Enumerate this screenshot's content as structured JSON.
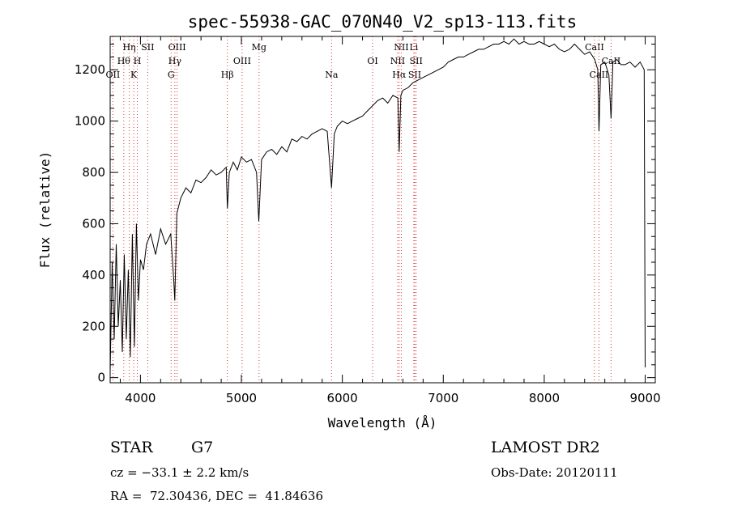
{
  "chart_data": {
    "type": "line",
    "title": "spec-55938-GAC_070N40_V2_sp13-113.fits",
    "xlabel": "Wavelength (Å)",
    "ylabel": "Flux (relative)",
    "xlim": [
      3700,
      9100
    ],
    "ylim": [
      -20,
      1330
    ],
    "xticks": [
      4000,
      5000,
      6000,
      7000,
      8000,
      9000
    ],
    "yticks": [
      0,
      200,
      400,
      600,
      800,
      1000,
      1200
    ],
    "grid": false,
    "series": [
      {
        "x": [
          3700,
          3720,
          3740,
          3760,
          3780,
          3800,
          3820,
          3840,
          3860,
          3880,
          3900,
          3920,
          3940,
          3960,
          3980,
          4000,
          4030,
          4060,
          4100,
          4150,
          4200,
          4250,
          4300,
          4330,
          4340,
          4360,
          4400,
          4450,
          4500,
          4550,
          4600,
          4650,
          4700,
          4750,
          4800,
          4850,
          4861,
          4880,
          4920,
          4960,
          5000,
          5050,
          5100,
          5150,
          5172,
          5200,
          5250,
          5300,
          5350,
          5400,
          5450,
          5500,
          5550,
          5600,
          5650,
          5700,
          5750,
          5800,
          5850,
          5893,
          5920,
          5950,
          6000,
          6050,
          6100,
          6150,
          6200,
          6250,
          6300,
          6350,
          6400,
          6450,
          6500,
          6550,
          6563,
          6580,
          6600,
          6650,
          6700,
          6750,
          6800,
          6850,
          6900,
          6950,
          7000,
          7050,
          7100,
          7150,
          7200,
          7250,
          7300,
          7350,
          7400,
          7450,
          7500,
          7550,
          7600,
          7650,
          7700,
          7750,
          7800,
          7850,
          7900,
          7950,
          8000,
          8050,
          8100,
          8150,
          8200,
          8250,
          8300,
          8350,
          8400,
          8450,
          8500,
          8530,
          8542,
          8560,
          8600,
          8640,
          8662,
          8680,
          8720,
          8760,
          8800,
          8850,
          8900,
          8950,
          8990,
          9000
        ],
        "y": [
          20,
          450,
          150,
          520,
          200,
          380,
          100,
          480,
          150,
          420,
          80,
          560,
          120,
          600,
          300,
          460,
          420,
          520,
          560,
          480,
          580,
          520,
          560,
          380,
          300,
          640,
          700,
          740,
          720,
          770,
          760,
          780,
          810,
          790,
          800,
          820,
          660,
          800,
          840,
          810,
          860,
          840,
          850,
          800,
          610,
          850,
          880,
          890,
          870,
          900,
          880,
          930,
          920,
          940,
          930,
          950,
          960,
          970,
          960,
          740,
          950,
          980,
          1000,
          990,
          1000,
          1010,
          1020,
          1040,
          1060,
          1080,
          1090,
          1070,
          1100,
          1090,
          880,
          1100,
          1120,
          1130,
          1150,
          1160,
          1170,
          1180,
          1190,
          1200,
          1210,
          1230,
          1240,
          1250,
          1250,
          1260,
          1270,
          1280,
          1280,
          1290,
          1300,
          1300,
          1310,
          1300,
          1320,
          1300,
          1310,
          1300,
          1300,
          1310,
          1300,
          1290,
          1300,
          1280,
          1270,
          1280,
          1300,
          1280,
          1260,
          1270,
          1240,
          1200,
          960,
          1220,
          1230,
          1180,
          1010,
          1230,
          1240,
          1220,
          1220,
          1230,
          1210,
          1230,
          1200,
          40
        ]
      }
    ],
    "lines": [
      {
        "x": 3727,
        "label": "OII",
        "row": 3
      },
      {
        "x": 3835,
        "label": "Hθ",
        "row": 2
      },
      {
        "x": 3889,
        "label": "Hη",
        "row": 1
      },
      {
        "x": 3934,
        "label": "K",
        "row": 3
      },
      {
        "x": 3969,
        "label": "H",
        "row": 2
      },
      {
        "x": 4072,
        "label": "SII",
        "row": 1
      },
      {
        "x": 4304,
        "label": "G",
        "row": 3
      },
      {
        "x": 4341,
        "label": "Hγ",
        "row": 2
      },
      {
        "x": 4363,
        "label": "OIII",
        "row": 1
      },
      {
        "x": 4861,
        "label": "Hβ",
        "row": 3
      },
      {
        "x": 5007,
        "label": "OIII",
        "row": 2
      },
      {
        "x": 5175,
        "label": "Mg",
        "row": 1
      },
      {
        "x": 5893,
        "label": "Na",
        "row": 3
      },
      {
        "x": 6300,
        "label": "OI",
        "row": 2
      },
      {
        "x": 6548,
        "label": "NII",
        "row": 2
      },
      {
        "x": 6563,
        "label": "Hα",
        "row": 3
      },
      {
        "x": 6584,
        "label": "NII",
        "row": 1
      },
      {
        "x": 6708,
        "label": "Li",
        "row": 1
      },
      {
        "x": 6717,
        "label": "SII",
        "row": 3
      },
      {
        "x": 6731,
        "label": "SII",
        "row": 2
      },
      {
        "x": 8498,
        "label": "CaII",
        "row": 1
      },
      {
        "x": 8542,
        "label": "CaII",
        "row": 3
      },
      {
        "x": 8662,
        "label": "CaII",
        "row": 2
      }
    ]
  },
  "info": {
    "class": "STAR",
    "subclass": "G7",
    "survey": "LAMOST DR2",
    "cz": "cz = −33.1 ± 2.2 km/s",
    "obs_date": "Obs-Date: 20120111",
    "coords": "RA =  72.30436, DEC =  41.84636"
  }
}
